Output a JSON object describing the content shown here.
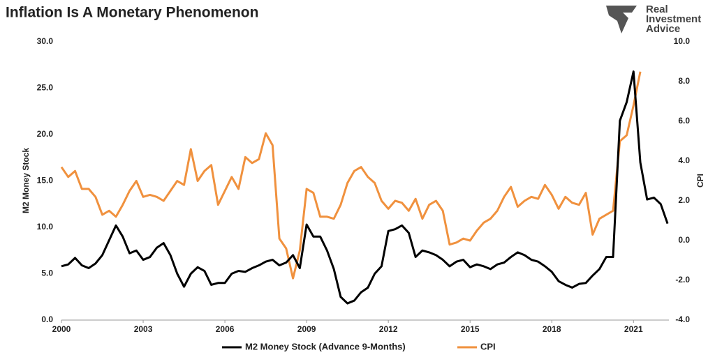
{
  "chart_data": {
    "type": "line",
    "title": "Inflation Is A Monetary Phenomenon",
    "brand": [
      "Real",
      "Investment",
      "Advice"
    ],
    "ylabel": "M2 Money Stock",
    "y2label": "CPI",
    "x": [
      2000,
      2000.25,
      2000.5,
      2000.75,
      2001,
      2001.25,
      2001.5,
      2001.75,
      2002,
      2002.25,
      2002.5,
      2002.75,
      2003,
      2003.25,
      2003.5,
      2003.75,
      2004,
      2004.25,
      2004.5,
      2004.75,
      2005,
      2005.25,
      2005.5,
      2005.75,
      2006,
      2006.25,
      2006.5,
      2006.75,
      2007,
      2007.25,
      2007.5,
      2007.75,
      2008,
      2008.25,
      2008.5,
      2008.75,
      2009,
      2009.25,
      2009.5,
      2009.75,
      2010,
      2010.25,
      2010.5,
      2010.75,
      2011,
      2011.25,
      2011.5,
      2011.75,
      2012,
      2012.25,
      2012.5,
      2012.75,
      2013,
      2013.25,
      2013.5,
      2013.75,
      2014,
      2014.25,
      2014.5,
      2014.75,
      2015,
      2015.25,
      2015.5,
      2015.75,
      2016,
      2016.25,
      2016.5,
      2016.75,
      2017,
      2017.25,
      2017.5,
      2017.75,
      2018,
      2018.25,
      2018.5,
      2018.75,
      2019,
      2019.25,
      2019.5,
      2019.75,
      2020,
      2020.25,
      2020.5,
      2020.75,
      2021,
      2021.25,
      2021.5,
      2021.75,
      2022,
      2022.25
    ],
    "series": [
      {
        "name": "M2 Money Stock (Advance 9-Months)",
        "color": "#000000",
        "axis": "y",
        "values": [
          5.8,
          6.0,
          6.7,
          5.9,
          5.6,
          6.1,
          7.0,
          8.6,
          10.2,
          9.0,
          7.2,
          7.5,
          6.5,
          6.8,
          7.8,
          8.3,
          7.0,
          5.0,
          3.6,
          5.0,
          5.7,
          5.3,
          3.8,
          4.0,
          4.0,
          5.0,
          5.3,
          5.2,
          5.6,
          5.9,
          6.3,
          6.5,
          5.9,
          6.2,
          7.0,
          5.6,
          10.3,
          9.0,
          9.0,
          7.5,
          5.5,
          2.5,
          1.8,
          2.1,
          3.0,
          3.5,
          5.0,
          5.8,
          9.6,
          9.8,
          10.2,
          9.4,
          6.8,
          7.5,
          7.3,
          7.0,
          6.5,
          5.8,
          6.3,
          6.5,
          5.7,
          6.0,
          5.8,
          5.5,
          6.0,
          6.2,
          6.8,
          7.3,
          7.0,
          6.5,
          6.3,
          5.8,
          5.2,
          4.2,
          3.8,
          3.5,
          3.9,
          4.0,
          4.8,
          5.5,
          6.8,
          6.8,
          21.5,
          23.5,
          26.8,
          17.0,
          13.0,
          13.2,
          12.5,
          10.4
        ]
      },
      {
        "name": "CPI",
        "color": "#f0913e",
        "axis": "y2",
        "values": [
          3.7,
          3.2,
          3.5,
          2.6,
          2.6,
          2.2,
          1.3,
          1.5,
          1.2,
          1.8,
          2.5,
          3.0,
          2.2,
          2.3,
          2.2,
          2.0,
          2.5,
          3.0,
          2.8,
          4.6,
          3.0,
          3.5,
          3.8,
          1.8,
          2.5,
          3.2,
          2.6,
          4.2,
          3.9,
          4.1,
          5.4,
          4.8,
          0.1,
          -0.4,
          -1.9,
          -0.5,
          2.6,
          2.4,
          1.2,
          1.2,
          1.1,
          1.8,
          2.9,
          3.5,
          3.7,
          3.2,
          2.9,
          2.0,
          1.6,
          2.0,
          1.9,
          1.5,
          2.1,
          1.1,
          1.8,
          2.0,
          1.5,
          -0.2,
          -0.1,
          0.1,
          0.0,
          0.5,
          0.9,
          1.1,
          1.5,
          2.2,
          2.7,
          1.7,
          2.0,
          2.2,
          2.1,
          2.8,
          2.3,
          1.6,
          2.2,
          1.9,
          1.8,
          2.4,
          0.3,
          1.1,
          1.3,
          1.5,
          5.0,
          5.3,
          6.8,
          8.5,
          null,
          null,
          null,
          null
        ]
      }
    ],
    "xlim": [
      2000,
      2022.3
    ],
    "xticks": [
      2000,
      2003,
      2006,
      2009,
      2012,
      2015,
      2018,
      2021
    ],
    "ylim": [
      0,
      30
    ],
    "yticks": [
      {
        "value": 0,
        "label": "0.0"
      },
      {
        "value": 5,
        "label": "5.0"
      },
      {
        "value": 10,
        "label": "10.0"
      },
      {
        "value": 15,
        "label": "15.0"
      },
      {
        "value": 20,
        "label": "20.0"
      },
      {
        "value": 25,
        "label": "25.0"
      },
      {
        "value": 30,
        "label": "30.0"
      }
    ],
    "y2lim": [
      -4,
      10
    ],
    "y2ticks": [
      {
        "value": -4,
        "label": "-4.0"
      },
      {
        "value": -2,
        "label": "-2.0"
      },
      {
        "value": 0,
        "label": "0.0"
      },
      {
        "value": 2,
        "label": "2.0"
      },
      {
        "value": 4,
        "label": "4.0"
      },
      {
        "value": 6,
        "label": "6.0"
      },
      {
        "value": 8,
        "label": "8.0"
      },
      {
        "value": 10,
        "label": "10.0"
      }
    ],
    "grid": false,
    "legend": "bottom"
  }
}
